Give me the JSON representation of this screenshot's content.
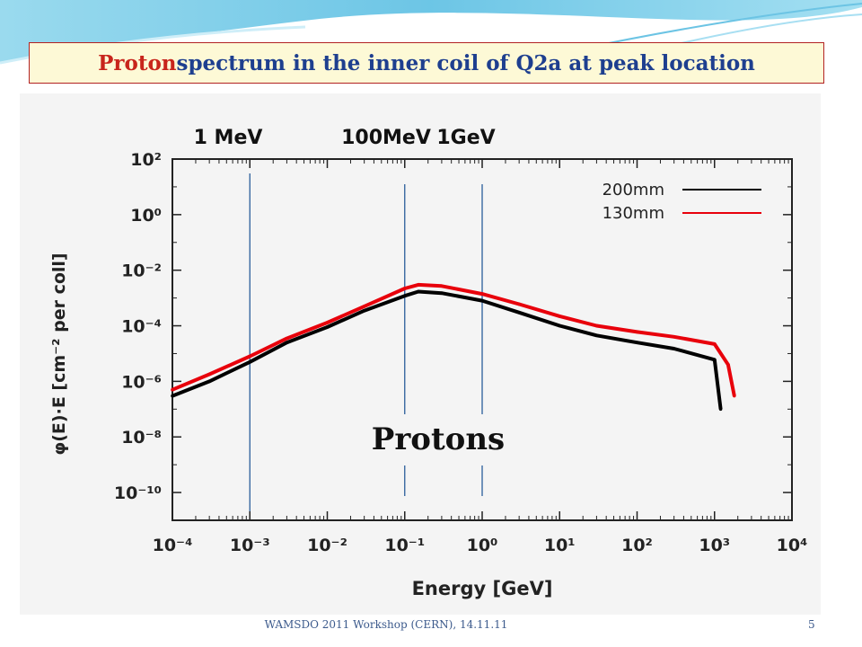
{
  "slide": {
    "title_highlight": "Proton",
    "title_rest": " spectrum in the inner coil of Q2a at peak location",
    "footer": "WAMSDO 2011 Workshop (CERN), 14.11.11",
    "page_number": "5"
  },
  "colors": {
    "title_text": "#1e3f8f",
    "title_highlight": "#c8251c",
    "title_border": "#b22222",
    "title_fill": "#fdf9d6",
    "series_200mm": "#000000",
    "series_130mm": "#e8000b",
    "marker_lines": "#2a5d9a"
  },
  "chart_data": {
    "type": "line",
    "title": "",
    "xlabel": "Energy [GeV]",
    "ylabel": "φ(E)·E [cm⁻² per coll]",
    "xscale": "log",
    "yscale": "log",
    "xlim": [
      0.0001,
      10000
    ],
    "ylim": [
      1e-11,
      100
    ],
    "x_ticks": [
      "10⁻⁴",
      "10⁻³",
      "10⁻²",
      "10⁻¹",
      "10⁰",
      "10¹",
      "10²",
      "10³",
      "10⁴"
    ],
    "y_ticks": [
      "10⁻¹⁰",
      "10⁻⁸",
      "10⁻⁶",
      "10⁻⁴",
      "10⁻²",
      "10⁰",
      "10²"
    ],
    "legend_position": "top-right",
    "series": [
      {
        "name": "200mm",
        "color": "#000000",
        "x": [
          0.0001,
          0.0003,
          0.001,
          0.003,
          0.01,
          0.03,
          0.1,
          0.15,
          0.3,
          1,
          3,
          10,
          30,
          100,
          300,
          1000,
          1200
        ],
        "y": [
          3e-07,
          1e-06,
          5e-06,
          2.5e-05,
          9e-05,
          0.00035,
          0.0012,
          0.0017,
          0.0015,
          0.0008,
          0.0003,
          0.0001,
          4.5e-05,
          2.5e-05,
          1.5e-05,
          6e-06,
          1e-07
        ]
      },
      {
        "name": "130mm",
        "color": "#e8000b",
        "x": [
          0.0001,
          0.0003,
          0.001,
          0.003,
          0.01,
          0.03,
          0.1,
          0.15,
          0.3,
          1,
          3,
          10,
          30,
          100,
          300,
          1000,
          1500,
          1800
        ],
        "y": [
          5e-07,
          1.8e-06,
          8e-06,
          3.5e-05,
          0.00013,
          0.0005,
          0.0022,
          0.003,
          0.0027,
          0.0014,
          0.0006,
          0.00022,
          0.0001,
          6e-05,
          4e-05,
          2.2e-05,
          4e-06,
          3e-07
        ]
      }
    ],
    "annotations": [
      {
        "label": "1 MeV",
        "x": 0.001
      },
      {
        "label": "100MeV",
        "x": 0.1
      },
      {
        "label": "1GeV",
        "x": 1
      }
    ],
    "inset_label": "Protons"
  }
}
